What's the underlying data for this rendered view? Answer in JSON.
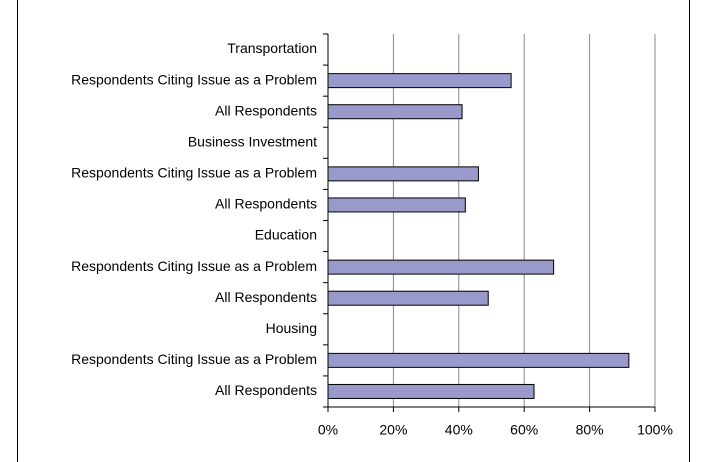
{
  "chart_data": {
    "type": "bar",
    "orientation": "horizontal",
    "categories": [
      "Transportation",
      "Respondents Citing Issue as a Problem",
      "All Respondents",
      "Business Investment",
      "Respondents Citing Issue as a Problem",
      "All Respondents",
      "Education",
      "Respondents Citing Issue as a Problem",
      "All Respondents",
      "Housing",
      "Respondents Citing Issue as a Problem",
      "All Respondents"
    ],
    "values": [
      null,
      56,
      41,
      null,
      46,
      42,
      null,
      69,
      49,
      null,
      92,
      63
    ],
    "color": "#9999cc",
    "xlim": [
      0,
      100
    ],
    "xticks": [
      {
        "value": 0,
        "label": "0%"
      },
      {
        "value": 20,
        "label": "20%"
      },
      {
        "value": 40,
        "label": "40%"
      },
      {
        "value": 60,
        "label": "60%"
      },
      {
        "value": 80,
        "label": "80%"
      },
      {
        "value": 100,
        "label": "100%"
      }
    ],
    "grid": true
  }
}
